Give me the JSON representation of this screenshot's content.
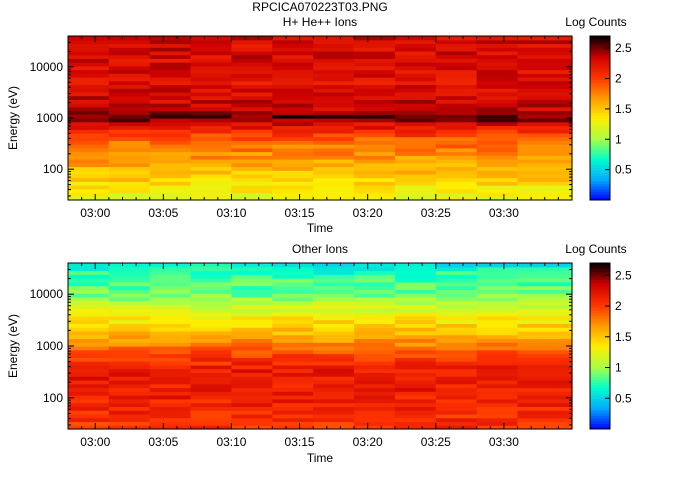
{
  "figure_title": "RPCICA070223T03.PNG",
  "chart_data": [
    {
      "type": "heatmap",
      "title": "H+ He++ Ions",
      "xlabel": "Time",
      "ylabel": "Energy (eV)",
      "x_tick_labels": [
        "03:00",
        "03:05",
        "03:10",
        "03:15",
        "03:20",
        "03:25",
        "03:30"
      ],
      "x_range": [
        "02:58",
        "03:35"
      ],
      "time_columns": [
        "02:58",
        "03:01",
        "03:04",
        "03:07",
        "03:10",
        "03:13",
        "03:16",
        "03:19",
        "03:22",
        "03:25",
        "03:28",
        "03:31"
      ],
      "y_scale": "log",
      "y_tick_labels": [
        "100",
        "1000",
        "10000"
      ],
      "y_range": [
        25,
        40000
      ],
      "energy_profile_log_counts": [
        {
          "energy": 30,
          "log_counts": 1.25
        },
        {
          "energy": 60,
          "log_counts": 1.45
        },
        {
          "energy": 150,
          "log_counts": 1.65
        },
        {
          "energy": 400,
          "log_counts": 1.9
        },
        {
          "energy": 800,
          "log_counts": 2.3
        },
        {
          "energy": 1000,
          "log_counts": 2.6
        },
        {
          "energy": 1500,
          "log_counts": 2.35
        },
        {
          "energy": 5000,
          "log_counts": 2.25
        },
        {
          "energy": 20000,
          "log_counts": 2.3
        },
        {
          "energy": 40000,
          "log_counts": 2.3
        }
      ],
      "colorbar": {
        "label": "Log Counts",
        "ticks": [
          "0.5",
          "1",
          "1.5",
          "2",
          "2.5"
        ],
        "range": [
          0,
          2.7
        ]
      },
      "colormap": [
        "#0000ff",
        "#00aaff",
        "#00ffcc",
        "#aaff44",
        "#ffee00",
        "#ff9900",
        "#ff3300",
        "#cc0000",
        "#000000"
      ]
    },
    {
      "type": "heatmap",
      "title": "Other Ions",
      "xlabel": "Time",
      "ylabel": "Energy (eV)",
      "x_tick_labels": [
        "03:00",
        "03:05",
        "03:10",
        "03:15",
        "03:20",
        "03:25",
        "03:30"
      ],
      "x_range": [
        "02:58",
        "03:35"
      ],
      "time_columns": [
        "02:58",
        "03:01",
        "03:04",
        "03:07",
        "03:10",
        "03:13",
        "03:16",
        "03:19",
        "03:22",
        "03:25",
        "03:28",
        "03:31"
      ],
      "y_scale": "log",
      "y_tick_labels": [
        "100",
        "1000",
        "10000"
      ],
      "y_range": [
        25,
        40000
      ],
      "energy_profile_log_counts": [
        {
          "energy": 30,
          "log_counts": 2.05
        },
        {
          "energy": 100,
          "log_counts": 2.15
        },
        {
          "energy": 300,
          "log_counts": 2.2
        },
        {
          "energy": 700,
          "log_counts": 2.0
        },
        {
          "energy": 1500,
          "log_counts": 1.6
        },
        {
          "energy": 4000,
          "log_counts": 1.3
        },
        {
          "energy": 10000,
          "log_counts": 0.9
        },
        {
          "energy": 20000,
          "log_counts": 0.8
        },
        {
          "energy": 40000,
          "log_counts": 0.6
        }
      ],
      "colorbar": {
        "label": "Log Counts",
        "ticks": [
          "0.5",
          "1",
          "1.5",
          "2",
          "2.5"
        ],
        "range": [
          0,
          2.7
        ]
      },
      "colormap": [
        "#0000ff",
        "#00aaff",
        "#00ffcc",
        "#aaff44",
        "#ffee00",
        "#ff9900",
        "#ff3300",
        "#cc0000",
        "#000000"
      ]
    }
  ]
}
